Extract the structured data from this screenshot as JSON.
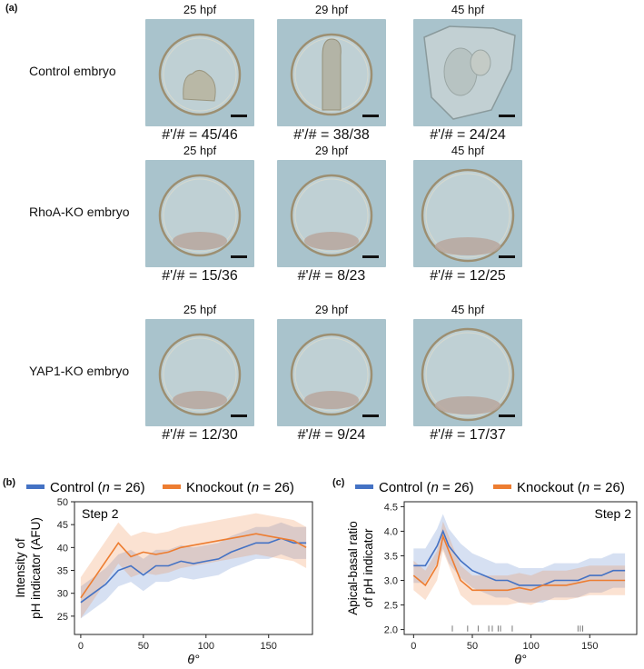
{
  "figure": {
    "panel_a": {
      "label": "(a)",
      "rows": [
        {
          "label": "Control embryo",
          "images": [
            {
              "time": "25 hpf",
              "count": "#'/# = 45/46",
              "kind": "control-early"
            },
            {
              "time": "29 hpf",
              "count": "#'/# = 38/38",
              "kind": "control-mid"
            },
            {
              "time": "45 hpf",
              "count": "#'/# = 24/24",
              "kind": "control-late"
            }
          ]
        },
        {
          "label": "RhoA-KO embryo",
          "images": [
            {
              "time": "25 hpf",
              "count": "#'/# = 15/36",
              "kind": "ko"
            },
            {
              "time": "29 hpf",
              "count": "#'/# = 8/23",
              "kind": "ko"
            },
            {
              "time": "45 hpf",
              "count": "#'/# = 12/25",
              "kind": "ko-large"
            }
          ]
        },
        {
          "label": "YAP1-KO embryo",
          "images": [
            {
              "time": "25 hpf",
              "count": "#'/# = 12/30",
              "kind": "ko"
            },
            {
              "time": "29 hpf",
              "count": "#'/# = 9/24",
              "kind": "ko"
            },
            {
              "time": "45 hpf",
              "count": "#'/# = 17/37",
              "kind": "ko-large"
            }
          ]
        }
      ]
    },
    "panel_b": {
      "label": "(b)"
    },
    "panel_c": {
      "label": "(c)"
    }
  },
  "chart_data": [
    {
      "type": "line",
      "panel": "(b)",
      "annotation": "Step 2",
      "xlabel": "θ°",
      "ylabel": [
        "Intensity of",
        "pH indicator (AFU)"
      ],
      "xlim": [
        -5,
        185
      ],
      "ylim": [
        21,
        50
      ],
      "xticks": [
        0,
        50,
        100,
        150
      ],
      "yticks": [
        25,
        30,
        35,
        40,
        45,
        50
      ],
      "grid": false,
      "legend": "top, outside",
      "x": [
        0,
        10,
        20,
        30,
        40,
        50,
        60,
        70,
        80,
        90,
        100,
        110,
        120,
        130,
        140,
        150,
        160,
        170,
        180
      ],
      "series": [
        {
          "name": "Control (n = 26)",
          "color": "#4472c4",
          "values": [
            28,
            30,
            32,
            35,
            36,
            34,
            36,
            36,
            37,
            36.5,
            37,
            37.5,
            39,
            40,
            41,
            41,
            42,
            41,
            41
          ],
          "band": 3.5
        },
        {
          "name": "Knockout (n = 26)",
          "color": "#ed7d31",
          "values": [
            29,
            33,
            37,
            41,
            38,
            39,
            38.5,
            39,
            40,
            40.5,
            41,
            41.5,
            42,
            42.5,
            43,
            42.5,
            42,
            41.5,
            40
          ],
          "band": 4.5
        }
      ]
    },
    {
      "type": "line",
      "panel": "(c)",
      "annotation": "Step 2",
      "xlabel": "θ°",
      "ylabel": [
        "Apical-basal ratio",
        "of pH indicator"
      ],
      "xlim": [
        -8,
        190
      ],
      "ylim": [
        1.9,
        4.6
      ],
      "xticks": [
        0,
        50,
        100,
        150
      ],
      "yticks": [
        2.0,
        2.5,
        3.0,
        3.5,
        4.0,
        4.5
      ],
      "grid": false,
      "legend": "top, outside",
      "x": [
        0,
        10,
        20,
        25,
        30,
        40,
        50,
        60,
        70,
        80,
        90,
        100,
        110,
        120,
        130,
        140,
        150,
        160,
        170,
        180
      ],
      "series": [
        {
          "name": "Control (n = 26)",
          "color": "#4472c4",
          "values": [
            3.3,
            3.3,
            3.7,
            4.0,
            3.7,
            3.4,
            3.2,
            3.1,
            3.0,
            3.0,
            2.9,
            2.9,
            2.9,
            3.0,
            3.0,
            3.0,
            3.1,
            3.1,
            3.2,
            3.2
          ],
          "band": 0.35
        },
        {
          "name": "Knockout (n = 26)",
          "color": "#ed7d31",
          "values": [
            3.1,
            2.9,
            3.3,
            3.9,
            3.6,
            3.0,
            2.8,
            2.8,
            2.8,
            2.8,
            2.85,
            2.8,
            2.9,
            2.9,
            2.9,
            2.95,
            3.0,
            3.0,
            3.0,
            3.0
          ],
          "band": 0.3
        }
      ],
      "rug": [
        33,
        46,
        55,
        64,
        67,
        72,
        74,
        84,
        140,
        142,
        144
      ]
    }
  ]
}
